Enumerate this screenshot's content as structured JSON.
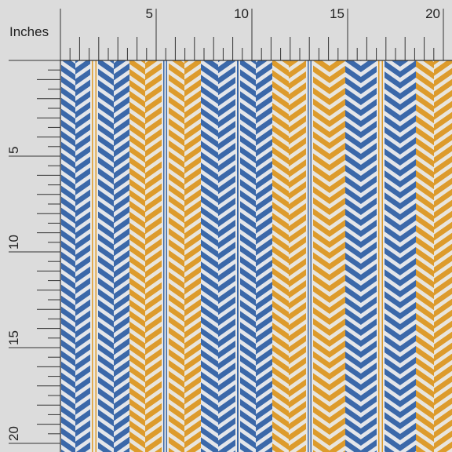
{
  "ruler": {
    "unit_label": "Inches",
    "top_labels": [
      "5",
      "10",
      "15",
      "20"
    ],
    "left_labels": [
      "5",
      "10",
      "15",
      "20"
    ]
  }
}
